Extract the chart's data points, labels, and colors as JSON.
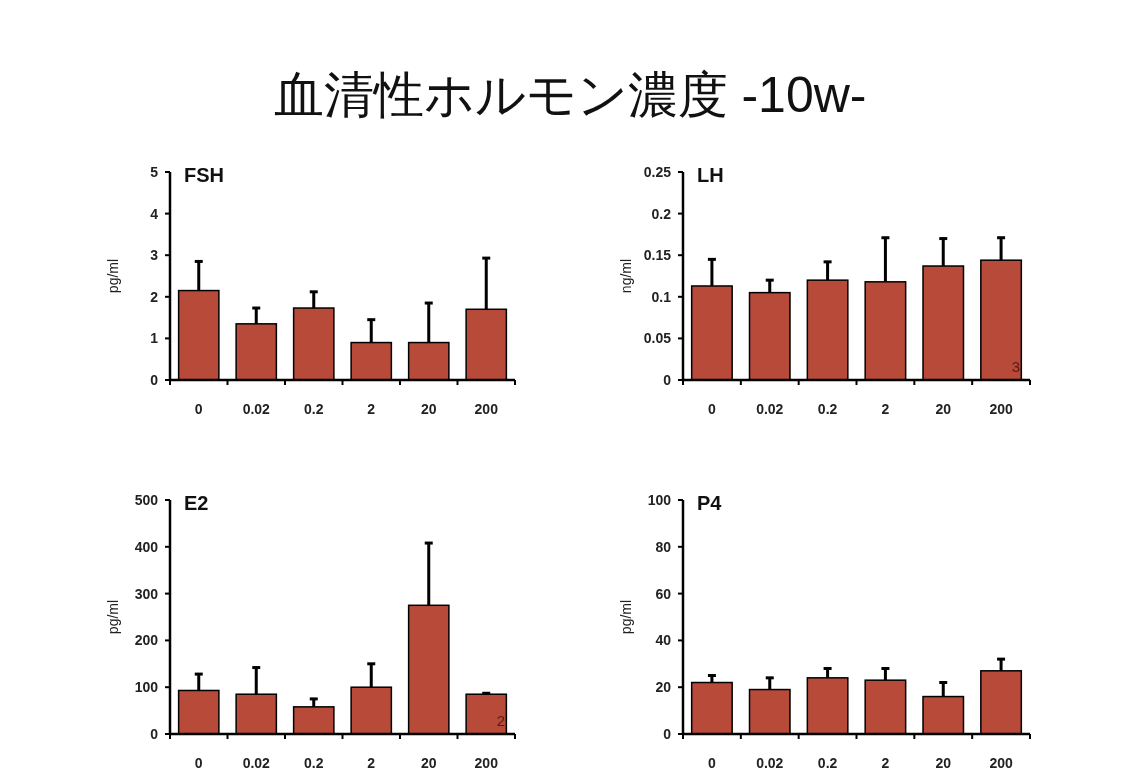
{
  "chart_data": [
    {
      "type": "bar",
      "title": "FSH",
      "ylabel": "pg/ml",
      "categories": [
        "0",
        "0.02",
        "0.2",
        "2",
        "20",
        "200"
      ],
      "ylim": [
        0,
        5
      ],
      "yticks": [
        0,
        1,
        2,
        3,
        4,
        5
      ],
      "color": "#b84a3a",
      "values": [
        2.15,
        1.35,
        1.73,
        0.9,
        0.9,
        1.7
      ],
      "errors": [
        [
          2.15,
          2.85
        ],
        [
          1.35,
          1.73
        ],
        [
          1.73,
          2.12
        ],
        [
          0.9,
          1.45
        ],
        [
          0.9,
          1.85
        ],
        [
          1.7,
          2.93
        ]
      ],
      "annotations": [
        "血清性ホルモン濃度  -10w-"
      ]
    },
    {
      "type": "bar",
      "title": "LH",
      "ylabel": "ng/ml",
      "categories": [
        "0",
        "0.02",
        "0.2",
        "2",
        "20",
        "200"
      ],
      "ylim": [
        0,
        0.25
      ],
      "yticks": [
        0,
        0.05,
        0.1,
        0.15,
        0.2,
        0.25
      ],
      "color": "#b84a3a",
      "values": [
        0.113,
        0.105,
        0.12,
        0.118,
        0.137,
        0.144
      ],
      "errors": [
        [
          0.113,
          0.145
        ],
        [
          0.105,
          0.12
        ],
        [
          0.12,
          0.142
        ],
        [
          0.118,
          0.171
        ],
        [
          0.137,
          0.17
        ],
        [
          0.144,
          0.171
        ]
      ],
      "annotations": [
        "3"
      ]
    },
    {
      "type": "bar",
      "title": "E2",
      "ylabel": "pg/ml",
      "categories": [
        "0",
        "0.02",
        "0.2",
        "2",
        "20",
        "200"
      ],
      "ylim": [
        0,
        500
      ],
      "yticks": [
        0,
        100,
        200,
        300,
        400,
        500
      ],
      "color": "#b84a3a",
      "values": [
        93,
        85,
        58,
        100,
        275,
        85
      ],
      "errors": [
        [
          93,
          128
        ],
        [
          85,
          142
        ],
        [
          58,
          75
        ],
        [
          100,
          150
        ],
        [
          275,
          408
        ],
        [
          85,
          87
        ]
      ],
      "annotations": [
        "2"
      ]
    },
    {
      "type": "bar",
      "title": "P4",
      "ylabel": "pg/ml",
      "categories": [
        "0",
        "0.02",
        "0.2",
        "2",
        "20",
        "200"
      ],
      "ylim": [
        0,
        100
      ],
      "yticks": [
        0,
        20,
        40,
        60,
        80,
        100
      ],
      "color": "#b84a3a",
      "values": [
        22,
        19,
        24,
        23,
        16,
        27
      ],
      "errors": [
        [
          22,
          25
        ],
        [
          19,
          24
        ],
        [
          24,
          28
        ],
        [
          23,
          28
        ],
        [
          16,
          22
        ],
        [
          27,
          32
        ]
      ]
    }
  ]
}
